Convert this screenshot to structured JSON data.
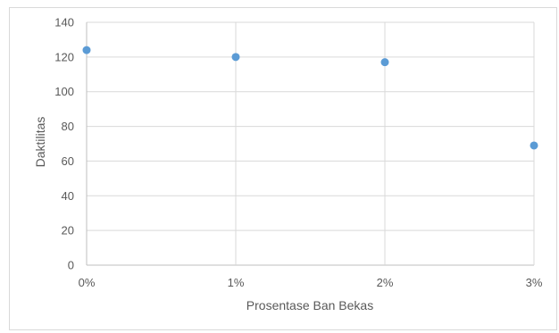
{
  "chart_data": {
    "type": "scatter",
    "title": "",
    "xlabel": "Prosentase Ban Bekas",
    "ylabel": "Daktilitas",
    "x_ticks": [
      "0%",
      "1%",
      "2%",
      "3%"
    ],
    "x_values": [
      0,
      1,
      2,
      3
    ],
    "xlim": [
      0,
      3
    ],
    "y_ticks": [
      0,
      20,
      40,
      60,
      80,
      100,
      120,
      140
    ],
    "ylim": [
      0,
      140
    ],
    "grid": true,
    "legend": "none",
    "series": [
      {
        "x": [
          0,
          1,
          2,
          3
        ],
        "y": [
          124,
          120,
          117,
          69
        ],
        "color": "#5b9bd5"
      }
    ]
  }
}
